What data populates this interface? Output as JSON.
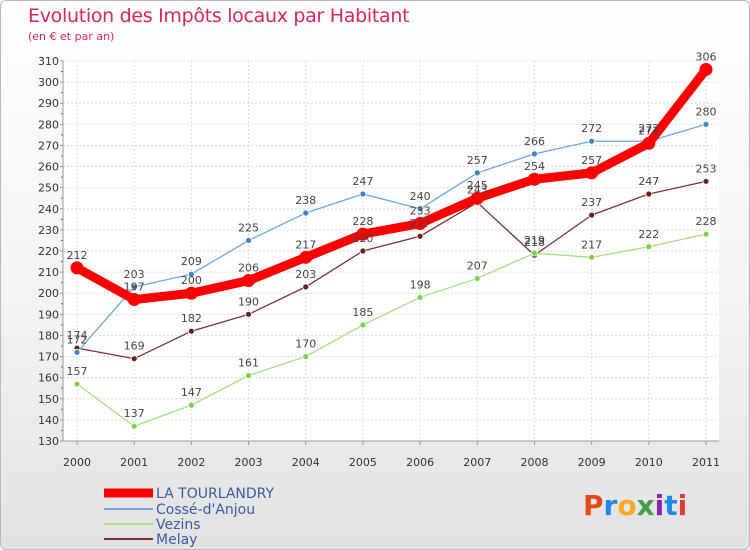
{
  "header": {
    "title": "Evolution des Impôts locaux par Habitant",
    "subtitle": "(en € et par an)"
  },
  "logo": {
    "text": "Proxiti",
    "colors": [
      "#e64a19",
      "#1e88e5",
      "#f9a825",
      "#43a047",
      "#8e24aa",
      "#1e88e5",
      "#e53935"
    ]
  },
  "chart_data": {
    "type": "line",
    "title": "Evolution des Impôts locaux par Habitant",
    "subtitle": "(en € et par an)",
    "x": [
      "2000",
      "2001",
      "2002",
      "2003",
      "2004",
      "2005",
      "2006",
      "2007",
      "2008",
      "2009",
      "2010",
      "2011"
    ],
    "ylim": [
      130,
      310
    ],
    "yticks": [
      130,
      140,
      150,
      160,
      170,
      180,
      190,
      200,
      210,
      220,
      230,
      240,
      250,
      260,
      270,
      280,
      290,
      300,
      310
    ],
    "grid": true,
    "legend_position": "bottom-left",
    "series": [
      {
        "name": "LA TOURLANDRY",
        "color": "#ff0000",
        "values": [
          212,
          197,
          200,
          206,
          217,
          228,
          233,
          245,
          254,
          257,
          271,
          306
        ]
      },
      {
        "name": "Cossé-d'Anjou",
        "color": "#6fa8dc",
        "marker": "#3d85c6",
        "values": [
          172,
          203,
          209,
          225,
          238,
          247,
          240,
          257,
          266,
          272,
          272,
          280
        ]
      },
      {
        "name": "Vezins",
        "color": "#a4e082",
        "marker": "#7cd34a",
        "values": [
          157,
          137,
          147,
          161,
          170,
          185,
          198,
          207,
          219,
          217,
          222,
          228
        ]
      },
      {
        "name": "Melay",
        "color": "#7b3232",
        "marker": "#6b1f1f",
        "values": [
          174,
          169,
          182,
          190,
          203,
          220,
          227,
          243,
          218,
          237,
          247,
          253
        ]
      }
    ]
  }
}
